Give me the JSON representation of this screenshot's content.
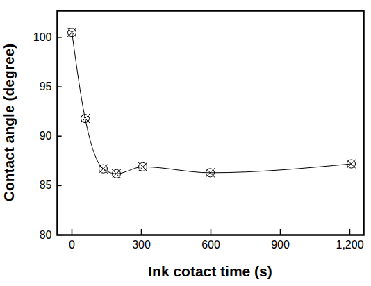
{
  "chart_data": {
    "type": "line",
    "x_label": "Ink cotact time (s)",
    "y_label": "Contact angle (degree)",
    "x": [
      0,
      57,
      135,
      192,
      306,
      597,
      1206
    ],
    "values": [
      100.5,
      91.8,
      86.7,
      86.2,
      86.9,
      86.3,
      87.2
    ],
    "color": "#000000",
    "marker": "circle-cross",
    "line_style": "solid",
    "xlim": [
      -63,
      1260
    ],
    "xticks": [
      0,
      300,
      600,
      900,
      1200
    ],
    "ylim": [
      80,
      102.7
    ],
    "yticks": [
      80,
      85,
      90,
      95,
      100
    ],
    "grid": false
  }
}
